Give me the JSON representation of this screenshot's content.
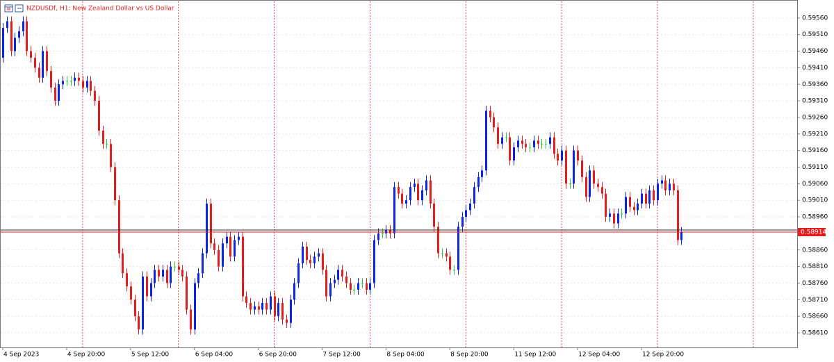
{
  "chart_data": {
    "type": "candlestick",
    "title": "NZDUSDf, H1:  New Zealand Dollar vs US Dollar",
    "up_color": "#0a24e8",
    "down_color": "#e41e1e",
    "doji_color": "#2ecc40",
    "separator_color": "#e41e1e",
    "grid": true,
    "xlim": [
      -0.7,
      199
    ],
    "ylim": [
      0.58566,
      0.5961
    ],
    "xticks": [
      {
        "value": 0,
        "label": "4 Sep 2023"
      },
      {
        "value": 16,
        "label": "4 Sep 20:00"
      },
      {
        "value": 32,
        "label": "5 Sep 12:00"
      },
      {
        "value": 48,
        "label": "6 Sep 04:00"
      },
      {
        "value": 64,
        "label": "6 Sep 20:00"
      },
      {
        "value": 80,
        "label": "7 Sep 12:00"
      },
      {
        "value": 96,
        "label": "8 Sep 04:00"
      },
      {
        "value": 112,
        "label": "8 Sep 20:00"
      },
      {
        "value": 128,
        "label": "11 Sep 12:00"
      },
      {
        "value": 144,
        "label": "12 Sep 04:00"
      },
      {
        "value": 160,
        "label": "12 Sep 20:00"
      }
    ],
    "period_separators": [
      20,
      44,
      68,
      92,
      116,
      140,
      164,
      188
    ],
    "yticks": [
      {
        "value": 0.5956,
        "label": "0.59560"
      },
      {
        "value": 0.5951,
        "label": "0.59510"
      },
      {
        "value": 0.5946,
        "label": "0.59460"
      },
      {
        "value": 0.5941,
        "label": "0.59410"
      },
      {
        "value": 0.5936,
        "label": "0.59360"
      },
      {
        "value": 0.5931,
        "label": "0.59310"
      },
      {
        "value": 0.5926,
        "label": "0.59260"
      },
      {
        "value": 0.5921,
        "label": "0.59210"
      },
      {
        "value": 0.5916,
        "label": "0.59160"
      },
      {
        "value": 0.5911,
        "label": "0.59110"
      },
      {
        "value": 0.5906,
        "label": "0.59060"
      },
      {
        "value": 0.5901,
        "label": "0.59010"
      },
      {
        "value": 0.5896,
        "label": "0.58960"
      },
      {
        "value": 0.5886,
        "label": "0.58860"
      },
      {
        "value": 0.5881,
        "label": "0.58810"
      },
      {
        "value": 0.5876,
        "label": "0.58760"
      },
      {
        "value": 0.5871,
        "label": "0.58710"
      },
      {
        "value": 0.5866,
        "label": "0.58660"
      },
      {
        "value": 0.5861,
        "label": "0.58610"
      }
    ],
    "current_price": {
      "value": 0.58914,
      "label": "0.58914"
    },
    "open": [
      0.5944,
      0.5953,
      0.5955,
      0.5946,
      0.595,
      0.5952,
      0.5955,
      0.5946,
      0.5944,
      0.5941,
      0.5938,
      0.5946,
      0.594,
      0.5935,
      0.5931,
      0.5936,
      0.5937,
      0.5937,
      0.5937,
      0.5938,
      0.5937,
      0.5935,
      0.5937,
      0.5934,
      0.5931,
      0.5922,
      0.5918,
      0.5918,
      0.5911,
      0.5901,
      0.5885,
      0.5879,
      0.5875,
      0.5871,
      0.5866,
      0.5862,
      0.5878,
      0.5872,
      0.5876,
      0.588,
      0.5878,
      0.588,
      0.5876,
      0.5881,
      0.5881,
      0.588,
      0.5878,
      0.5868,
      0.5862,
      0.5876,
      0.5879,
      0.5885,
      0.59,
      0.5888,
      0.5886,
      0.5881,
      0.5888,
      0.589,
      0.5884,
      0.5889,
      0.589,
      0.5872,
      0.587,
      0.5868,
      0.5869,
      0.5868,
      0.587,
      0.5868,
      0.5872,
      0.5866,
      0.587,
      0.5865,
      0.5864,
      0.5871,
      0.5876,
      0.5882,
      0.5887,
      0.5883,
      0.5882,
      0.5884,
      0.5885,
      0.588,
      0.5872,
      0.5876,
      0.5877,
      0.588,
      0.5878,
      0.5876,
      0.5874,
      0.5874,
      0.5876,
      0.5876,
      0.5874,
      0.5876,
      0.5889,
      0.5891,
      0.5891,
      0.5892,
      0.5891,
      0.5905,
      0.5903,
      0.59,
      0.5901,
      0.5905,
      0.5906,
      0.5901,
      0.5904,
      0.5907,
      0.59,
      0.5893,
      0.5885,
      0.5885,
      0.5884,
      0.588,
      0.588,
      0.5893,
      0.5896,
      0.5898,
      0.59,
      0.5905,
      0.5908,
      0.591,
      0.5928,
      0.5926,
      0.5923,
      0.5918,
      0.592,
      0.592,
      0.5913,
      0.5917,
      0.5919,
      0.5918,
      0.5917,
      0.5917,
      0.5919,
      0.5918,
      0.5918,
      0.5918,
      0.592,
      0.5915,
      0.5913,
      0.5916,
      0.5906,
      0.5906,
      0.5916,
      0.5913,
      0.5908,
      0.5902,
      0.591,
      0.5906,
      0.5905,
      0.5903,
      0.5896,
      0.5897,
      0.5894,
      0.5897,
      0.5897,
      0.5902,
      0.5899,
      0.5898,
      0.59,
      0.5903,
      0.59,
      0.5904,
      0.5901,
      0.5906,
      0.5907,
      0.5904,
      0.5906,
      0.5904,
      0.5889
    ],
    "high": [
      0.59545,
      0.59565,
      0.59565,
      0.59515,
      0.59535,
      0.59565,
      0.59565,
      0.59475,
      0.59455,
      0.59425,
      0.59475,
      0.59475,
      0.59415,
      0.59365,
      0.59375,
      0.59385,
      0.59385,
      0.59385,
      0.59395,
      0.59395,
      0.59385,
      0.59385,
      0.59385,
      0.59355,
      0.59325,
      0.59235,
      0.59195,
      0.59195,
      0.59125,
      0.59025,
      0.58865,
      0.58805,
      0.58765,
      0.58725,
      0.58675,
      0.58795,
      0.58795,
      0.58775,
      0.58815,
      0.58815,
      0.58815,
      0.58815,
      0.58825,
      0.58825,
      0.58825,
      0.58815,
      0.58795,
      0.58695,
      0.58775,
      0.58805,
      0.58865,
      0.59015,
      0.59015,
      0.58895,
      0.58875,
      0.58895,
      0.58915,
      0.58915,
      0.58905,
      0.58915,
      0.58915,
      0.58735,
      0.58715,
      0.58705,
      0.58705,
      0.58715,
      0.58715,
      0.58735,
      0.58735,
      0.58715,
      0.58715,
      0.58665,
      0.58725,
      0.58775,
      0.58835,
      0.58885,
      0.58885,
      0.58845,
      0.58855,
      0.58865,
      0.58865,
      0.58815,
      0.58775,
      0.58785,
      0.58815,
      0.58815,
      0.58795,
      0.58775,
      0.58755,
      0.58775,
      0.58775,
      0.58775,
      0.58775,
      0.58905,
      0.58925,
      0.58925,
      0.58935,
      0.58935,
      0.59065,
      0.59065,
      0.59045,
      0.59025,
      0.59065,
      0.59075,
      0.59075,
      0.59055,
      0.59085,
      0.59085,
      0.59015,
      0.58945,
      0.58865,
      0.58865,
      0.58855,
      0.58815,
      0.58945,
      0.58975,
      0.58995,
      0.59015,
      0.59065,
      0.59095,
      0.59115,
      0.59295,
      0.59295,
      0.59275,
      0.59245,
      0.59215,
      0.59215,
      0.59215,
      0.59185,
      0.59205,
      0.59205,
      0.59195,
      0.59185,
      0.59205,
      0.59205,
      0.59195,
      0.59195,
      0.59215,
      0.59215,
      0.59165,
      0.59175,
      0.59175,
      0.59075,
      0.59175,
      0.59175,
      0.59145,
      0.59095,
      0.59115,
      0.59115,
      0.59075,
      0.59065,
      0.59045,
      0.58985,
      0.58985,
      0.58985,
      0.58985,
      0.59035,
      0.59035,
      0.59005,
      0.59015,
      0.59045,
      0.59045,
      0.59055,
      0.59055,
      0.59075,
      0.59085,
      0.59085,
      0.59075,
      0.59075,
      0.59055,
      0.58929
    ],
    "low": [
      0.59425,
      0.59515,
      0.59445,
      0.59445,
      0.59485,
      0.59505,
      0.59445,
      0.59425,
      0.59395,
      0.59365,
      0.59365,
      0.59385,
      0.59335,
      0.59295,
      0.59295,
      0.59345,
      0.59355,
      0.59355,
      0.59355,
      0.59355,
      0.59335,
      0.59335,
      0.59325,
      0.59295,
      0.59205,
      0.59165,
      0.59165,
      0.59095,
      0.58995,
      0.58835,
      0.58775,
      0.58735,
      0.58695,
      0.58645,
      0.58605,
      0.58605,
      0.58705,
      0.58705,
      0.58745,
      0.58765,
      0.58765,
      0.58745,
      0.58745,
      0.58795,
      0.58785,
      0.58765,
      0.58665,
      0.58605,
      0.58605,
      0.58745,
      0.58775,
      0.58835,
      0.58865,
      0.58845,
      0.58795,
      0.58795,
      0.58865,
      0.58825,
      0.58825,
      0.58875,
      0.58705,
      0.58685,
      0.58665,
      0.58665,
      0.58665,
      0.58665,
      0.58665,
      0.58665,
      0.58645,
      0.58645,
      0.58635,
      0.58625,
      0.58625,
      0.58695,
      0.58745,
      0.58805,
      0.58815,
      0.58805,
      0.58805,
      0.58825,
      0.58785,
      0.58705,
      0.58705,
      0.58745,
      0.58755,
      0.58765,
      0.58745,
      0.58725,
      0.58725,
      0.58725,
      0.58745,
      0.58725,
      0.58725,
      0.58745,
      0.58875,
      0.58895,
      0.58895,
      0.58895,
      0.58895,
      0.59015,
      0.58985,
      0.58985,
      0.58995,
      0.59035,
      0.58995,
      0.58995,
      0.59025,
      0.58985,
      0.58915,
      0.58835,
      0.58835,
      0.58825,
      0.58785,
      0.58785,
      0.58785,
      0.58915,
      0.58945,
      0.58965,
      0.58985,
      0.59035,
      0.59065,
      0.59085,
      0.59245,
      0.59215,
      0.59165,
      0.59165,
      0.59185,
      0.59115,
      0.59115,
      0.59155,
      0.59165,
      0.59155,
      0.59155,
      0.59155,
      0.59165,
      0.59165,
      0.59165,
      0.59165,
      0.59135,
      0.59115,
      0.59115,
      0.59045,
      0.59045,
      0.59045,
      0.59115,
      0.59065,
      0.59005,
      0.59005,
      0.59045,
      0.59035,
      0.59015,
      0.58945,
      0.58945,
      0.58925,
      0.58925,
      0.58955,
      0.58955,
      0.58975,
      0.58965,
      0.58965,
      0.58985,
      0.58985,
      0.58985,
      0.58995,
      0.58995,
      0.59045,
      0.59025,
      0.59025,
      0.59025,
      0.58875,
      0.58875
    ],
    "close": [
      0.5953,
      0.5955,
      0.5946,
      0.595,
      0.5952,
      0.5955,
      0.5946,
      0.5944,
      0.5941,
      0.5938,
      0.5946,
      0.594,
      0.5935,
      0.5931,
      0.5936,
      0.5937,
      0.5937,
      0.5937,
      0.5938,
      0.5937,
      0.5935,
      0.5937,
      0.5934,
      0.5931,
      0.5922,
      0.5918,
      0.5918,
      0.5911,
      0.5901,
      0.5885,
      0.5879,
      0.5875,
      0.5871,
      0.5866,
      0.5862,
      0.5878,
      0.5872,
      0.5876,
      0.588,
      0.5878,
      0.588,
      0.5876,
      0.5881,
      0.5881,
      0.588,
      0.5878,
      0.5868,
      0.5862,
      0.5876,
      0.5879,
      0.5885,
      0.59,
      0.5888,
      0.5886,
      0.5881,
      0.5888,
      0.589,
      0.5884,
      0.5889,
      0.589,
      0.5872,
      0.587,
      0.5868,
      0.5869,
      0.5868,
      0.587,
      0.5868,
      0.5872,
      0.5866,
      0.587,
      0.5865,
      0.5864,
      0.5871,
      0.5876,
      0.5882,
      0.5887,
      0.5883,
      0.5882,
      0.5884,
      0.5885,
      0.588,
      0.5872,
      0.5876,
      0.5877,
      0.588,
      0.5878,
      0.5876,
      0.5874,
      0.5874,
      0.5876,
      0.5876,
      0.5874,
      0.5876,
      0.5889,
      0.5891,
      0.5891,
      0.5892,
      0.5891,
      0.5905,
      0.5903,
      0.59,
      0.5901,
      0.5905,
      0.5906,
      0.5901,
      0.5904,
      0.5907,
      0.59,
      0.5893,
      0.5885,
      0.5885,
      0.5884,
      0.588,
      0.588,
      0.5893,
      0.5896,
      0.5898,
      0.59,
      0.5905,
      0.5908,
      0.591,
      0.5928,
      0.5926,
      0.5923,
      0.5918,
      0.592,
      0.592,
      0.5913,
      0.5917,
      0.5919,
      0.5918,
      0.5917,
      0.5917,
      0.5919,
      0.5918,
      0.5918,
      0.5918,
      0.592,
      0.5915,
      0.5913,
      0.5916,
      0.5906,
      0.5906,
      0.5916,
      0.5913,
      0.5908,
      0.5902,
      0.591,
      0.5906,
      0.5905,
      0.5903,
      0.5896,
      0.5897,
      0.5894,
      0.5897,
      0.5897,
      0.5902,
      0.5899,
      0.5898,
      0.59,
      0.5903,
      0.59,
      0.5904,
      0.5901,
      0.5906,
      0.5907,
      0.5904,
      0.5906,
      0.5904,
      0.5889,
      0.58914
    ]
  }
}
